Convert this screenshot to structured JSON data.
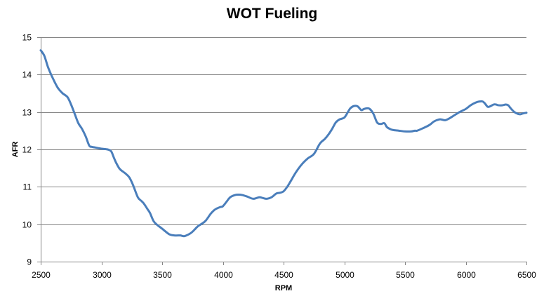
{
  "chart_data": {
    "type": "line",
    "title": "WOT Fueling",
    "xlabel": "RPM",
    "ylabel": "AFR",
    "xlim": [
      2500,
      6500
    ],
    "ylim": [
      9,
      15
    ],
    "x_ticks": [
      2500,
      3000,
      3500,
      4000,
      4500,
      5000,
      5500,
      6000,
      6500
    ],
    "y_ticks": [
      9,
      10,
      11,
      12,
      13,
      14,
      15
    ],
    "grid": "horizontal",
    "legend": "none",
    "series": [
      {
        "color": "#4a7ebb",
        "x": [
          2500,
          2530,
          2560,
          2600,
          2640,
          2680,
          2720,
          2750,
          2780,
          2810,
          2840,
          2870,
          2900,
          2920,
          2950,
          3000,
          3050,
          3080,
          3100,
          3120,
          3150,
          3180,
          3200,
          3230,
          3260,
          3300,
          3330,
          3350,
          3380,
          3400,
          3430,
          3460,
          3500,
          3530,
          3560,
          3600,
          3630,
          3650,
          3680,
          3700,
          3730,
          3750,
          3780,
          3800,
          3830,
          3860,
          3900,
          3930,
          3950,
          3980,
          4000,
          4030,
          4060,
          4100,
          4130,
          4160,
          4200,
          4250,
          4300,
          4330,
          4360,
          4400,
          4440,
          4470,
          4500,
          4530,
          4560,
          4600,
          4650,
          4700,
          4750,
          4800,
          4840,
          4870,
          4900,
          4930,
          4960,
          5000,
          5030,
          5050,
          5080,
          5110,
          5140,
          5160,
          5190,
          5210,
          5240,
          5270,
          5300,
          5330,
          5350,
          5380,
          5400,
          5420,
          5450,
          5500,
          5550,
          5580,
          5600,
          5650,
          5700,
          5740,
          5780,
          5800,
          5830,
          5860,
          5900,
          5950,
          6000,
          6040,
          6080,
          6110,
          6140,
          6160,
          6180,
          6200,
          6230,
          6250,
          6270,
          6300,
          6330,
          6350,
          6370,
          6400,
          6430,
          6450,
          6470,
          6500
        ],
        "y": [
          14.65,
          14.5,
          14.2,
          13.9,
          13.65,
          13.5,
          13.4,
          13.2,
          12.95,
          12.7,
          12.55,
          12.35,
          12.1,
          12.07,
          12.05,
          12.02,
          12.0,
          11.95,
          11.8,
          11.65,
          11.48,
          11.4,
          11.35,
          11.25,
          11.05,
          10.72,
          10.62,
          10.55,
          10.4,
          10.3,
          10.08,
          9.98,
          9.88,
          9.8,
          9.73,
          9.7,
          9.7,
          9.7,
          9.68,
          9.7,
          9.75,
          9.8,
          9.9,
          9.96,
          10.02,
          10.1,
          10.28,
          10.38,
          10.42,
          10.46,
          10.48,
          10.6,
          10.72,
          10.78,
          10.79,
          10.78,
          10.74,
          10.68,
          10.72,
          10.7,
          10.68,
          10.72,
          10.82,
          10.84,
          10.88,
          11.0,
          11.16,
          11.38,
          11.6,
          11.76,
          11.88,
          12.16,
          12.28,
          12.4,
          12.55,
          12.72,
          12.8,
          12.85,
          13.0,
          13.1,
          13.16,
          13.15,
          13.05,
          13.08,
          13.1,
          13.08,
          12.95,
          12.72,
          12.68,
          12.7,
          12.6,
          12.54,
          12.52,
          12.51,
          12.5,
          12.48,
          12.48,
          12.5,
          12.5,
          12.57,
          12.65,
          12.75,
          12.8,
          12.8,
          12.78,
          12.82,
          12.9,
          13.0,
          13.08,
          13.18,
          13.25,
          13.28,
          13.28,
          13.22,
          13.14,
          13.15,
          13.2,
          13.2,
          13.18,
          13.18,
          13.2,
          13.18,
          13.1,
          13.0,
          12.95,
          12.94,
          12.96,
          12.98
        ]
      }
    ]
  }
}
